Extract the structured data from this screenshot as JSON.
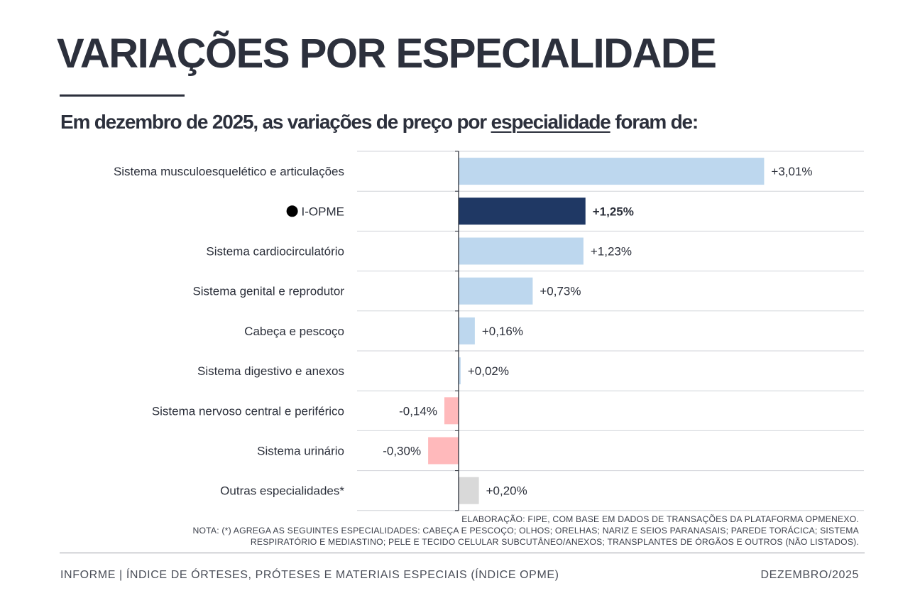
{
  "header": {
    "title": "VARIAÇÕES POR ESPECIALIDADE",
    "subtitle_before": "Em dezembro de 2025, as variações de preço por ",
    "subtitle_emphasis": "especialidade",
    "subtitle_after": " foram de:"
  },
  "chart_data": {
    "type": "bar",
    "orientation": "horizontal",
    "title": "Em dezembro de 2025, as variações de preço por especialidade foram de:",
    "unit": "%",
    "xlim": [
      -0.5,
      3.2
    ],
    "grid": true,
    "categories": [
      "Sistema musculoesquelético e articulações",
      "I-OPME",
      "Sistema cardiocirculatório",
      "Sistema genital e reprodutor",
      "Cabeça e pescoço",
      "Sistema digestivo e anexos",
      "Sistema nervoso central e periférico",
      "Sistema urinário",
      "Outras especialidades*"
    ],
    "values": [
      3.01,
      1.25,
      1.23,
      0.73,
      0.16,
      0.02,
      -0.14,
      -0.3,
      0.2
    ],
    "value_labels": [
      "+3,01%",
      "+1,25%",
      "+1,23%",
      "+0,73%",
      "+0,16%",
      "+0,02%",
      "-0,14%",
      "-0,30%",
      "+0,20%"
    ],
    "highlight_category": "I-OPME",
    "colors": {
      "positive": "#bdd7ee",
      "highlight": "#1f3864",
      "negative": "#ffb9bb",
      "other": "#d9d9d9",
      "axis": "#2b2f3a",
      "grid": "#d0d3d8"
    }
  },
  "notes": {
    "source": "ELABORAÇÃO: FIPE, COM BASE EM DADOS DE TRANSAÇÕES DA PLATAFORMA OPMENEXO.",
    "note_line1": "NOTA: (*) AGREGA AS SEGUINTES ESPECIALIDADES: CABEÇA E PESCOÇO; OLHOS; ORELHAS; NARIZ E SEIOS PARANASAIS; PAREDE TORÁCICA; SISTEMA",
    "note_line2": "RESPIRATÓRIO E MEDIASTINO; PELE E TECIDO CELULAR SUBCUTÂNEO/ANEXOS; TRANSPLANTES DE ÓRGÃOS E OUTROS (NÃO LISTADOS)."
  },
  "footer": {
    "left": "INFORME | ÍNDICE DE ÓRTESES, PRÓTESES E MATERIAIS ESPECIAIS (ÍNDICE OPME)",
    "right": "DEZEMBRO/2025"
  }
}
